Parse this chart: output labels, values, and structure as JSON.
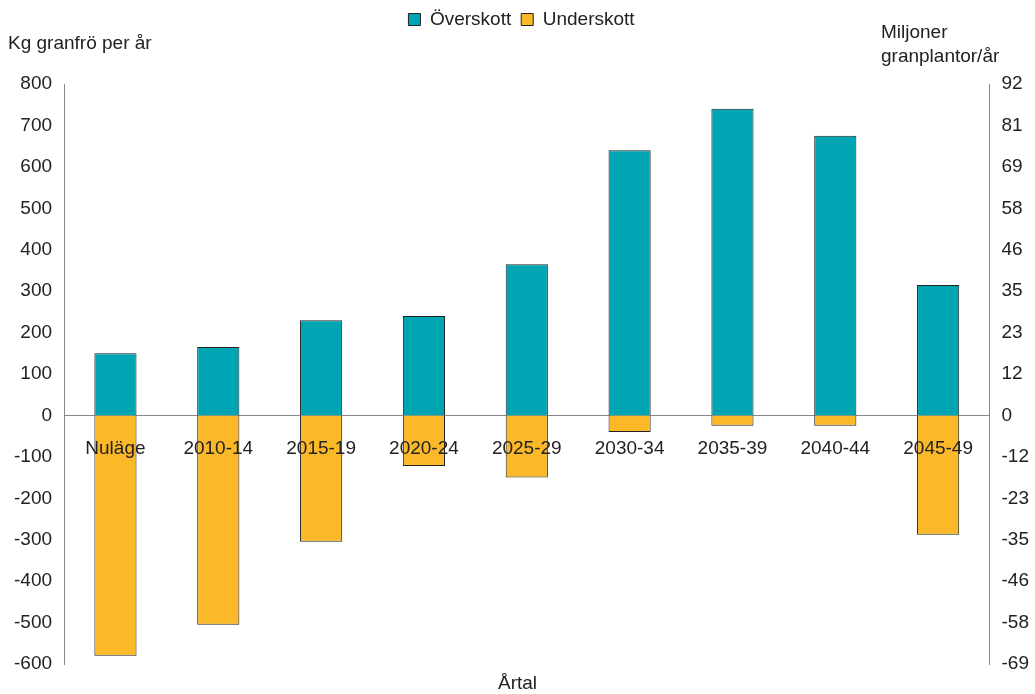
{
  "chart_data": {
    "type": "bar",
    "stacked": true,
    "xlabel": "Årtal",
    "ylabel": "Kg granfrö per år",
    "y2label": "Miljoner granplantor/år",
    "categories": [
      "Nuläge",
      "2010-14",
      "2015-19",
      "2020-24",
      "2025-29",
      "2030-34",
      "2035-39",
      "2040-44",
      "2045-49"
    ],
    "series": [
      {
        "name": "Överskott",
        "color": "#00a5b4",
        "values": [
          150,
          165,
          230,
          240,
          365,
          640,
          740,
          675,
          315
        ]
      },
      {
        "name": "Underskott",
        "color": "#fbb829",
        "values": [
          -580,
          -505,
          -305,
          -122,
          -150,
          -40,
          -25,
          -25,
          -288
        ]
      }
    ],
    "ylim": [
      -600,
      800
    ],
    "yticks": [
      -600,
      -500,
      -400,
      -300,
      -200,
      -100,
      0,
      100,
      200,
      300,
      400,
      500,
      600,
      700,
      800
    ],
    "y2lim": [
      -69,
      92
    ],
    "y2ticks": [
      {
        "value": -69,
        "label": "-69"
      },
      {
        "value": -57.5,
        "label": "-58"
      },
      {
        "value": -46,
        "label": "-46"
      },
      {
        "value": -34.5,
        "label": "-35"
      },
      {
        "value": -23,
        "label": "-23"
      },
      {
        "value": -11.5,
        "label": "-12"
      },
      {
        "value": 0,
        "label": "0"
      },
      {
        "value": 11.5,
        "label": "12"
      },
      {
        "value": 23,
        "label": "23"
      },
      {
        "value": 34.5,
        "label": "35"
      },
      {
        "value": 46,
        "label": "46"
      },
      {
        "value": 57.5,
        "label": "58"
      },
      {
        "value": 69,
        "label": "69"
      },
      {
        "value": 80.5,
        "label": "81"
      },
      {
        "value": 92,
        "label": "92"
      }
    ],
    "grid": false,
    "legend": "top"
  }
}
